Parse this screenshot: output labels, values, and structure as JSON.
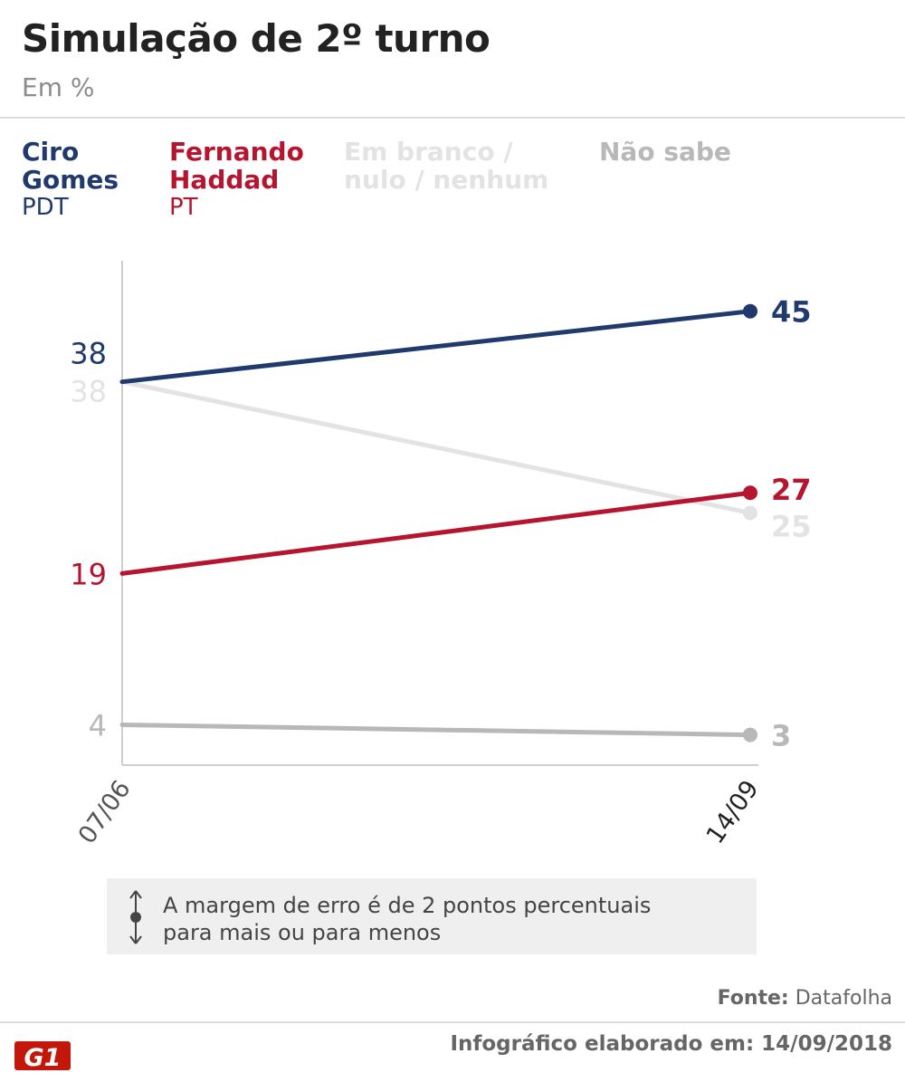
{
  "header": {
    "title": "Simulação de 2º turno",
    "subtitle": "Em %"
  },
  "legend": [
    {
      "name": "Ciro\nGomes",
      "party": "PDT",
      "color": "#203a6e"
    },
    {
      "name": "Fernando\nHaddad",
      "party": "PT",
      "color": "#b5152e"
    },
    {
      "name": "Em branco /\nnulo / nenhum",
      "party": "",
      "color": "#e3e3e3"
    },
    {
      "name": "Não sabe",
      "party": "",
      "color": "#b8b8b8"
    }
  ],
  "chart_data": {
    "type": "line",
    "x": [
      "07/06",
      "14/09"
    ],
    "ylim": [
      0,
      50
    ],
    "grid": false,
    "series": [
      {
        "name": "Ciro Gomes",
        "values": [
          38,
          45
        ],
        "color": "#203a6e",
        "end_marker": true
      },
      {
        "name": "Em branco / nulo / nenhum",
        "values": [
          38,
          25
        ],
        "color": "#e3e3e3",
        "end_marker": true
      },
      {
        "name": "Fernando Haddad",
        "values": [
          19,
          27
        ],
        "color": "#b5152e",
        "end_marker": true
      },
      {
        "name": "Não sabe",
        "values": [
          4,
          3
        ],
        "color": "#b8b8b8",
        "end_marker": true
      }
    ]
  },
  "note": {
    "text": "A margem de erro é de 2 pontos percentuais\npara mais ou para menos",
    "icon": "margin-of-error-icon"
  },
  "footer": {
    "source_label": "Fonte:",
    "source_value": "Datafolha",
    "credit": "Infográfico elaborado em: 14/09/2018",
    "logo_text": "G1",
    "logo_color": "#c4170c"
  }
}
